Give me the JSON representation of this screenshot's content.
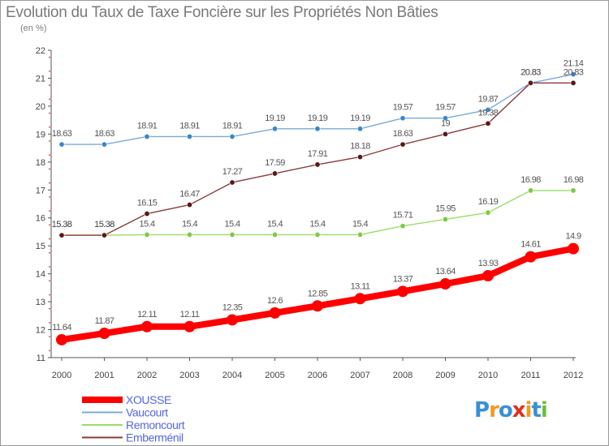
{
  "header": {
    "title": "Evolution du Taux de Taxe Foncière sur les Propriétés Non Bâties",
    "subtitle": "(en %)"
  },
  "logo": {
    "text": "Proxiti",
    "colors": [
      "#3a8fd6",
      "#f19a1f",
      "#3a8fd6",
      "#e0301e",
      "#f19a1f",
      "#3a8fd6",
      "#6fbf3a"
    ]
  },
  "chart_data": {
    "type": "line",
    "x": [
      2000,
      2001,
      2002,
      2003,
      2004,
      2005,
      2006,
      2007,
      2008,
      2009,
      2010,
      2011,
      2012
    ],
    "ylim": [
      11,
      22
    ],
    "yticks": [
      11,
      12,
      13,
      14,
      15,
      16,
      17,
      18,
      19,
      20,
      21,
      22
    ],
    "grid": false,
    "legend_position": "bottom-left",
    "series": [
      {
        "name": "XOUSSE",
        "color": "#ff0000",
        "values": [
          11.64,
          11.87,
          12.11,
          12.11,
          12.35,
          12.6,
          12.85,
          13.11,
          13.37,
          13.64,
          13.93,
          14.61,
          14.9
        ],
        "labels": [
          "11.64",
          "11.87",
          "12.11",
          "12.11",
          "12.35",
          "12.6",
          "12.85",
          "13.11",
          "13.37",
          "13.64",
          "13.93",
          "14.61",
          "14.9"
        ]
      },
      {
        "name": "Vaucourt",
        "color": "#7aaad8",
        "values": [
          18.63,
          18.63,
          18.91,
          18.91,
          18.91,
          19.19,
          19.19,
          19.19,
          19.57,
          19.57,
          19.87,
          20.83,
          21.14
        ],
        "labels": [
          "18.63",
          "18.63",
          "18.91",
          "18.91",
          "18.91",
          "19.19",
          "19.19",
          "19.19",
          "19.57",
          "19.57",
          "19.87",
          "20.83",
          "21.14"
        ]
      },
      {
        "name": "Remoncourt",
        "color": "#99dd66",
        "values": [
          15.38,
          15.38,
          15.4,
          15.4,
          15.4,
          15.4,
          15.4,
          15.4,
          15.71,
          15.95,
          16.19,
          16.98,
          16.98
        ],
        "labels": [
          "15.38",
          "15.38",
          "15.4",
          "15.4",
          "15.4",
          "15.4",
          "15.4",
          "15.4",
          "15.71",
          "15.95",
          "16.19",
          "16.98",
          "16.98"
        ]
      },
      {
        "name": "Emberménil",
        "color": "#8b3a3a",
        "values": [
          15.38,
          15.38,
          16.15,
          16.47,
          17.27,
          17.59,
          17.91,
          18.18,
          18.63,
          19.0,
          19.38,
          20.83,
          20.83
        ],
        "labels": [
          "15.38",
          "15.38",
          "16.15",
          "16.47",
          "17.27",
          "17.59",
          "17.91",
          "18.18",
          "18.63",
          "19",
          "19.38",
          "20.83",
          "20.83"
        ]
      }
    ]
  }
}
